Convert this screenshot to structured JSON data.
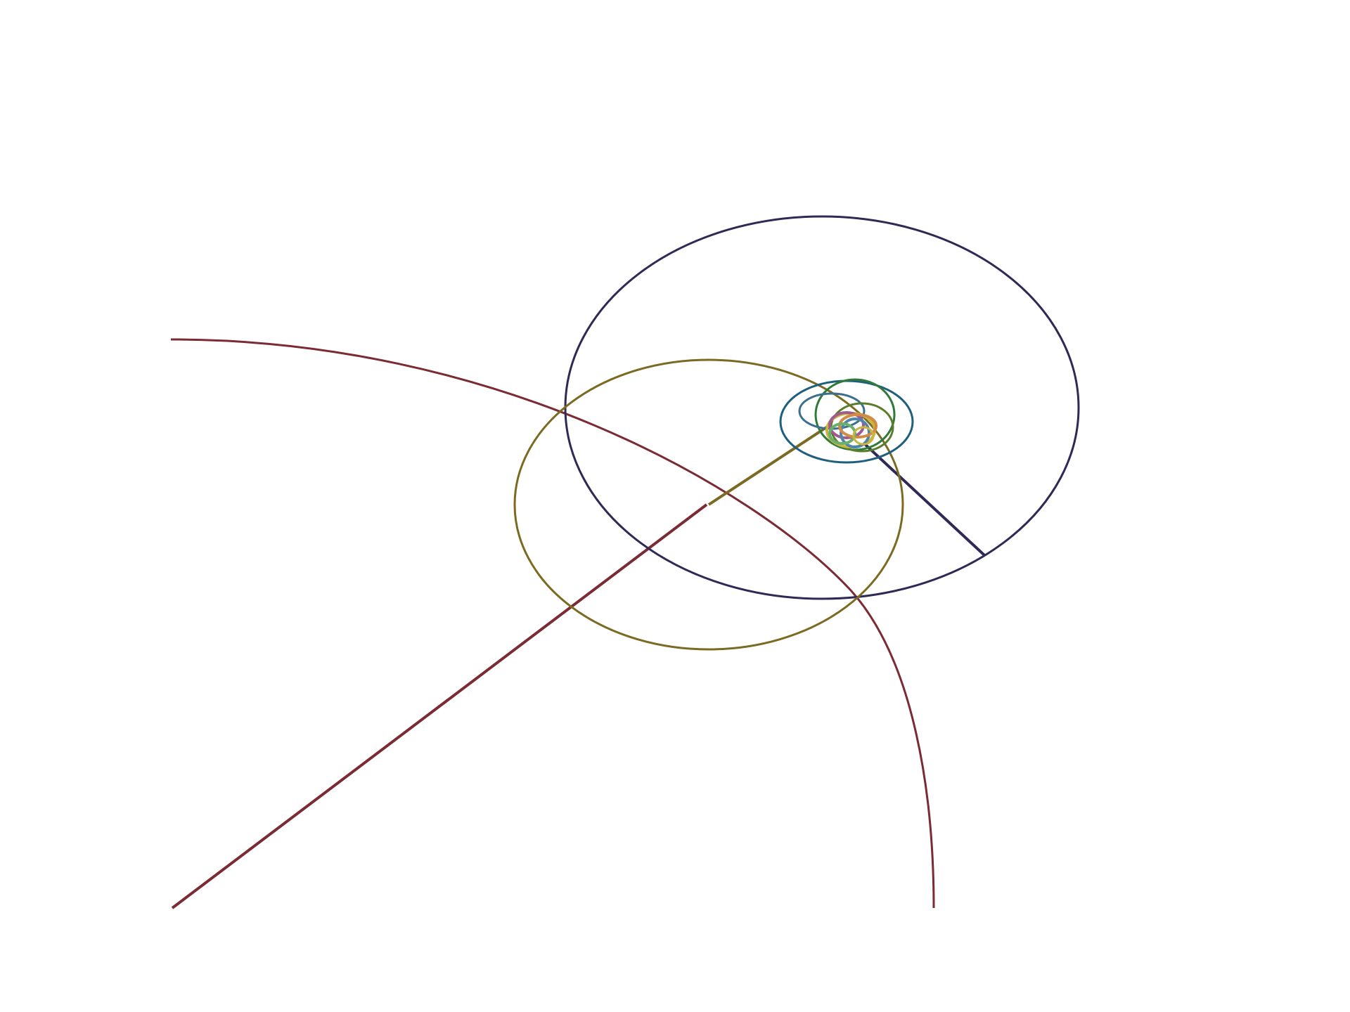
{
  "figure": {
    "background": "#ffffff",
    "text": []
  },
  "colors": {
    "outer_arc": "#7b2b33",
    "large_ellipse": "#2e2a55",
    "medium_ellipse": "#7b6a22",
    "small_loop_a": "#1f5f7e",
    "small_loop_b": "#2f7a3a",
    "small_loop_c": "#3a6f8f",
    "small_loop_d": "#5a7d2b",
    "core_a": "#c9b53f",
    "core_b": "#a05c8e",
    "core_c": "#4f86a8",
    "core_d": "#d48a43",
    "core_e": "#6bb06a"
  }
}
